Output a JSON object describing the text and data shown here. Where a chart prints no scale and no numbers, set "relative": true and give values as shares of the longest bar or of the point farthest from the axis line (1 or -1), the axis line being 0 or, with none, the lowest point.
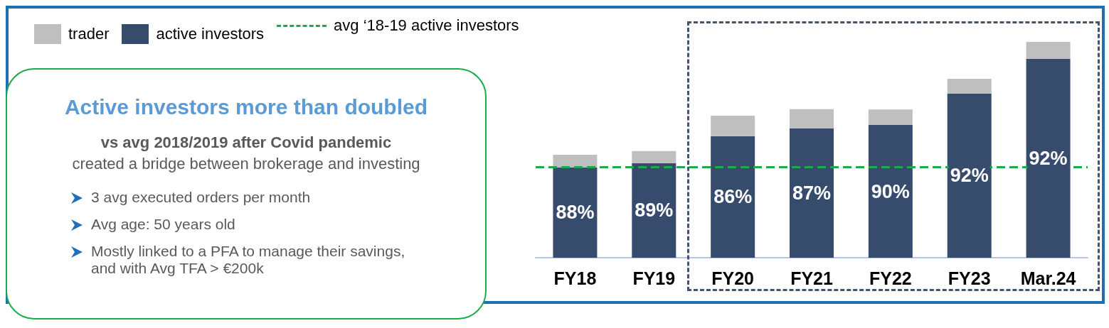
{
  "chart_data": {
    "type": "bar",
    "stacked": true,
    "relative": true,
    "title": "Active investors more than doubled",
    "annotations": [
      "vs avg 2018/2019 after Covid pandemic",
      "created a bridge between brokerage and investing",
      "3 avg executed orders per month",
      "Avg age: 50 years old",
      "Mostly linked to a PFA to manage their savings, and with Avg TFA > €200k",
      "88%",
      "89%",
      "86%",
      "87%",
      "90%",
      "92%",
      "92%"
    ],
    "categories": [
      "FY18",
      "FY19",
      "FY20",
      "FY21",
      "FY22",
      "FY23",
      "Mar.24"
    ],
    "series": [
      {
        "name": "active investors",
        "color": "#374c6c",
        "values": [
          0.418,
          0.438,
          0.563,
          0.599,
          0.615,
          0.76,
          0.921
        ]
      },
      {
        "name": "trader",
        "color": "#bfbfbf",
        "values": [
          0.059,
          0.056,
          0.095,
          0.089,
          0.072,
          0.069,
          0.079
        ]
      }
    ],
    "ref_lines": [
      {
        "axis": "y",
        "value": 0.418,
        "label": "avg ‘18-19 active investors",
        "color": "#1aab4a",
        "line_style": "dashed"
      }
    ],
    "legend": "top left"
  }
}
